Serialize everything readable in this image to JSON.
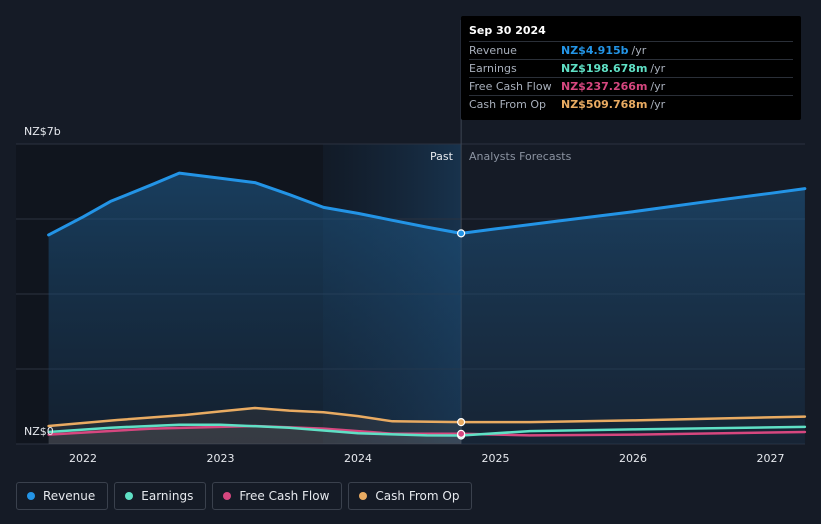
{
  "chart_data": {
    "type": "line",
    "x_ticks": [
      "2022",
      "2023",
      "2024",
      "2025",
      "2026",
      "2027"
    ],
    "y_labels": {
      "top": "NZ$7b",
      "bottom": "NZ$0"
    },
    "ylim": [
      0,
      7
    ],
    "divider_labels": {
      "past": "Past",
      "forecast": "Analysts Forecasts"
    },
    "divider_date": "Sep 30 2024",
    "series": [
      {
        "name": "Revenue",
        "color": "#2394e6",
        "points": [
          [
            2021.75,
            4.88
          ],
          [
            2022.0,
            5.3
          ],
          [
            2022.2,
            5.66
          ],
          [
            2022.5,
            6.05
          ],
          [
            2022.7,
            6.32
          ],
          [
            2023.0,
            6.2
          ],
          [
            2023.25,
            6.1
          ],
          [
            2023.5,
            5.82
          ],
          [
            2023.75,
            5.52
          ],
          [
            2024.0,
            5.38
          ],
          [
            2024.25,
            5.22
          ],
          [
            2024.5,
            5.06
          ],
          [
            2024.75,
            4.915
          ],
          [
            2025.0,
            5.02
          ],
          [
            2025.5,
            5.22
          ],
          [
            2026.0,
            5.42
          ],
          [
            2026.5,
            5.64
          ],
          [
            2027.0,
            5.85
          ],
          [
            2027.25,
            5.96
          ]
        ]
      },
      {
        "name": "Earnings",
        "color": "#5fe0c5",
        "points": [
          [
            2021.75,
            0.28
          ],
          [
            2022.2,
            0.38
          ],
          [
            2022.7,
            0.45
          ],
          [
            2023.0,
            0.45
          ],
          [
            2023.5,
            0.38
          ],
          [
            2024.0,
            0.25
          ],
          [
            2024.5,
            0.2
          ],
          [
            2024.75,
            0.199
          ],
          [
            2025.25,
            0.3
          ],
          [
            2026.0,
            0.34
          ],
          [
            2027.25,
            0.4
          ]
        ]
      },
      {
        "name": "Free Cash Flow",
        "color": "#d6477f",
        "points": [
          [
            2021.75,
            0.22
          ],
          [
            2022.5,
            0.36
          ],
          [
            2023.0,
            0.4
          ],
          [
            2023.25,
            0.42
          ],
          [
            2023.75,
            0.36
          ],
          [
            2024.25,
            0.24
          ],
          [
            2024.75,
            0.237
          ],
          [
            2025.25,
            0.2
          ],
          [
            2026.0,
            0.22
          ],
          [
            2027.25,
            0.28
          ]
        ]
      },
      {
        "name": "Cash From Op",
        "color": "#e9ab62",
        "points": [
          [
            2021.75,
            0.42
          ],
          [
            2022.25,
            0.56
          ],
          [
            2022.75,
            0.68
          ],
          [
            2023.0,
            0.76
          ],
          [
            2023.25,
            0.84
          ],
          [
            2023.5,
            0.78
          ],
          [
            2023.75,
            0.74
          ],
          [
            2024.0,
            0.65
          ],
          [
            2024.25,
            0.53
          ],
          [
            2024.75,
            0.51
          ],
          [
            2025.25,
            0.51
          ],
          [
            2026.0,
            0.55
          ],
          [
            2027.25,
            0.64
          ]
        ]
      }
    ],
    "highlight_index": 12,
    "highlight_x": 2024.75
  },
  "tooltip": {
    "date": "Sep 30 2024",
    "rows": [
      {
        "label": "Revenue",
        "value": "NZ$4.915b",
        "unit": "/yr",
        "color": "#2394e6"
      },
      {
        "label": "Earnings",
        "value": "NZ$198.678m",
        "unit": "/yr",
        "color": "#5fe0c5"
      },
      {
        "label": "Free Cash Flow",
        "value": "NZ$237.266m",
        "unit": "/yr",
        "color": "#d6477f"
      },
      {
        "label": "Cash From Op",
        "value": "NZ$509.768m",
        "unit": "/yr",
        "color": "#e9ab62"
      }
    ]
  },
  "legend": [
    {
      "label": "Revenue",
      "color": "#2394e6"
    },
    {
      "label": "Earnings",
      "color": "#5fe0c5"
    },
    {
      "label": "Free Cash Flow",
      "color": "#d6477f"
    },
    {
      "label": "Cash From Op",
      "color": "#e9ab62"
    }
  ]
}
